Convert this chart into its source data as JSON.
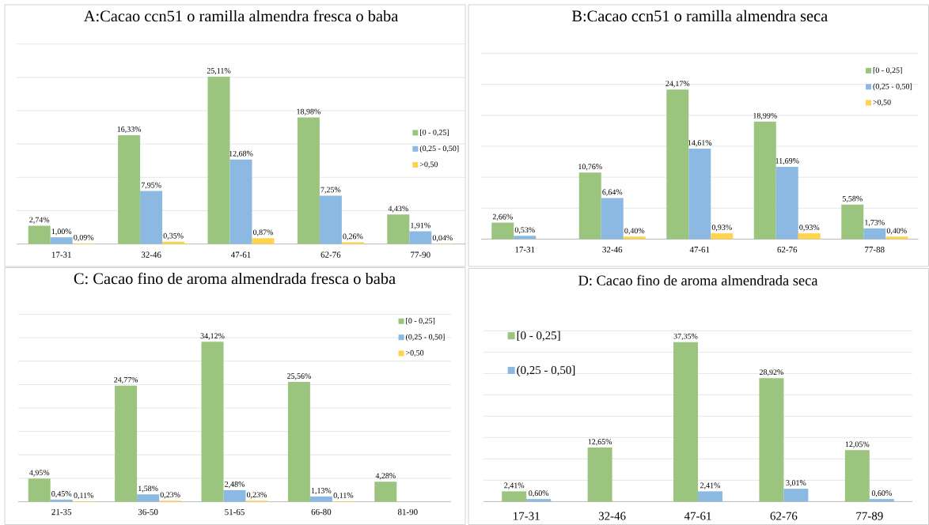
{
  "chart_data": [
    {
      "type": "bar",
      "title": "A:Cacao ccn51 o ramilla almendra fresca o baba",
      "categories": [
        "17-31",
        "32-46",
        "47-61",
        "62-76",
        "77-90"
      ],
      "series": [
        {
          "name": "[0 - 0,25]",
          "color": "#9bc57e",
          "values": [
            2.74,
            16.33,
            25.11,
            18.98,
            4.43
          ],
          "value_labels": [
            "2,74%",
            "16,33%",
            "25,11%",
            "18,98%",
            "4,43%"
          ]
        },
        {
          "name": "(0,25 - 0,50]",
          "color": "#8cb9e2",
          "values": [
            1.0,
            7.95,
            12.68,
            7.25,
            1.91
          ],
          "value_labels": [
            "1,00%",
            "7,95%",
            "12,68%",
            "7,25%",
            "1,91%"
          ]
        },
        {
          "name": ">0,50",
          "color": "#ffd34c",
          "values": [
            0.09,
            0.35,
            0.87,
            0.26,
            0.04
          ],
          "value_labels": [
            "0,09%",
            "0,35%",
            "0,87%",
            "0,26%",
            "0,04%"
          ]
        }
      ],
      "ylim": [
        0,
        30
      ],
      "yticks": [
        {
          "value": 0,
          "label": null
        },
        {
          "value": 5,
          "label": null
        },
        {
          "value": 10,
          "label": null
        },
        {
          "value": 15,
          "label": null
        },
        {
          "value": 20,
          "label": null
        },
        {
          "value": 25,
          "label": null
        },
        {
          "value": 30,
          "label": null
        }
      ],
      "grid": "y",
      "legend": "right",
      "tick_labels": "x"
    },
    {
      "type": "bar",
      "title": "B:Cacao ccn51 o ramilla almendra seca",
      "categories": [
        "17-31",
        "32-46",
        "47-61",
        "62-76",
        "77-88"
      ],
      "series": [
        {
          "name": "[0 - 0,25]",
          "color": "#9bc57e",
          "values": [
            2.66,
            10.76,
            24.17,
            18.99,
            5.58
          ],
          "value_labels": [
            "2,66%",
            "10,76%",
            "24,17%",
            "18,99%",
            "5,58%"
          ]
        },
        {
          "name": "(0,25 - 0,50]",
          "color": "#8cb9e2",
          "values": [
            0.53,
            6.64,
            14.61,
            11.69,
            1.73
          ],
          "value_labels": [
            "0,53%",
            "6,64%",
            "14,61%",
            "11,69%",
            "1,73%"
          ]
        },
        {
          "name": ">0,50",
          "color": "#ffd34c",
          "values": [
            null,
            0.4,
            0.93,
            0.93,
            0.4
          ],
          "value_labels": [
            null,
            "0,40%",
            "0,93%",
            "0,93%",
            "0,40%"
          ]
        }
      ],
      "ylim": [
        0,
        30
      ],
      "yticks": [
        {
          "value": 0,
          "label": null
        },
        {
          "value": 5,
          "label": null
        },
        {
          "value": 10,
          "label": null
        },
        {
          "value": 15,
          "label": null
        },
        {
          "value": 20,
          "label": null
        },
        {
          "value": 25,
          "label": null
        },
        {
          "value": 30,
          "label": null
        }
      ],
      "grid": "y",
      "legend": "top right",
      "tick_labels": "x"
    },
    {
      "type": "bar",
      "title": "C: Cacao fino de aroma almendrada fresca o baba",
      "categories": [
        "21-35",
        "36-50",
        "51-65",
        "66-80",
        "81-90"
      ],
      "series": [
        {
          "name": "[0 - 0,25]",
          "color": "#9bc57e",
          "values": [
            4.95,
            24.77,
            34.12,
            25.56,
            4.28
          ],
          "value_labels": [
            "4,95%",
            "24,77%",
            "34,12%",
            "25,56%",
            "4,28%"
          ]
        },
        {
          "name": "(0,25 - 0,50]",
          "color": "#8cb9e2",
          "values": [
            0.45,
            1.58,
            2.48,
            1.13,
            null
          ],
          "value_labels": [
            "0,45%",
            "1,58%",
            "2,48%",
            "1,13%",
            null
          ]
        },
        {
          "name": ">0,50",
          "color": "#ffd34c",
          "values": [
            0.11,
            0.23,
            0.23,
            0.11,
            null
          ],
          "value_labels": [
            "0,11%",
            "0,23%",
            "0,23%",
            "0,11%",
            null
          ]
        }
      ],
      "ylim": [
        0,
        40
      ],
      "yticks": [
        {
          "value": 0,
          "label": null
        },
        {
          "value": 5,
          "label": null
        },
        {
          "value": 10,
          "label": null
        },
        {
          "value": 15,
          "label": null
        },
        {
          "value": 20,
          "label": null
        },
        {
          "value": 25,
          "label": null
        },
        {
          "value": 30,
          "label": null
        },
        {
          "value": 35,
          "label": null
        },
        {
          "value": 40,
          "label": null
        }
      ],
      "grid": "y",
      "legend": "top right",
      "tick_labels": "x"
    },
    {
      "type": "bar",
      "title": "D: Cacao fino de aroma almendrada seca",
      "categories": [
        "17-31",
        "32-46",
        "47-61",
        "62-76",
        "77-89"
      ],
      "series": [
        {
          "name": "[0 - 0,25]",
          "color": "#9bc57e",
          "values": [
            2.41,
            12.65,
            37.35,
            28.92,
            12.05
          ],
          "value_labels": [
            "2,41%",
            "12,65%",
            "37,35%",
            "28,92%",
            "12,05%"
          ]
        },
        {
          "name": "(0,25 - 0,50]",
          "color": "#8cb9e2",
          "values": [
            0.6,
            null,
            2.41,
            3.01,
            0.6
          ],
          "value_labels": [
            "0,60%",
            null,
            "2,41%",
            "3,01%",
            "0,60%"
          ]
        }
      ],
      "ylim": [
        0,
        40
      ],
      "yticks": [
        {
          "value": 0,
          "label": null
        },
        {
          "value": 5,
          "label": null
        },
        {
          "value": 10,
          "label": null
        },
        {
          "value": 15,
          "label": null
        },
        {
          "value": 20,
          "label": null
        },
        {
          "value": 25,
          "label": null
        },
        {
          "value": 30,
          "label": null
        },
        {
          "value": 35,
          "label": null
        },
        {
          "value": 40,
          "label": null
        }
      ],
      "grid": "y",
      "legend": "top left",
      "tick_labels": "x"
    }
  ]
}
